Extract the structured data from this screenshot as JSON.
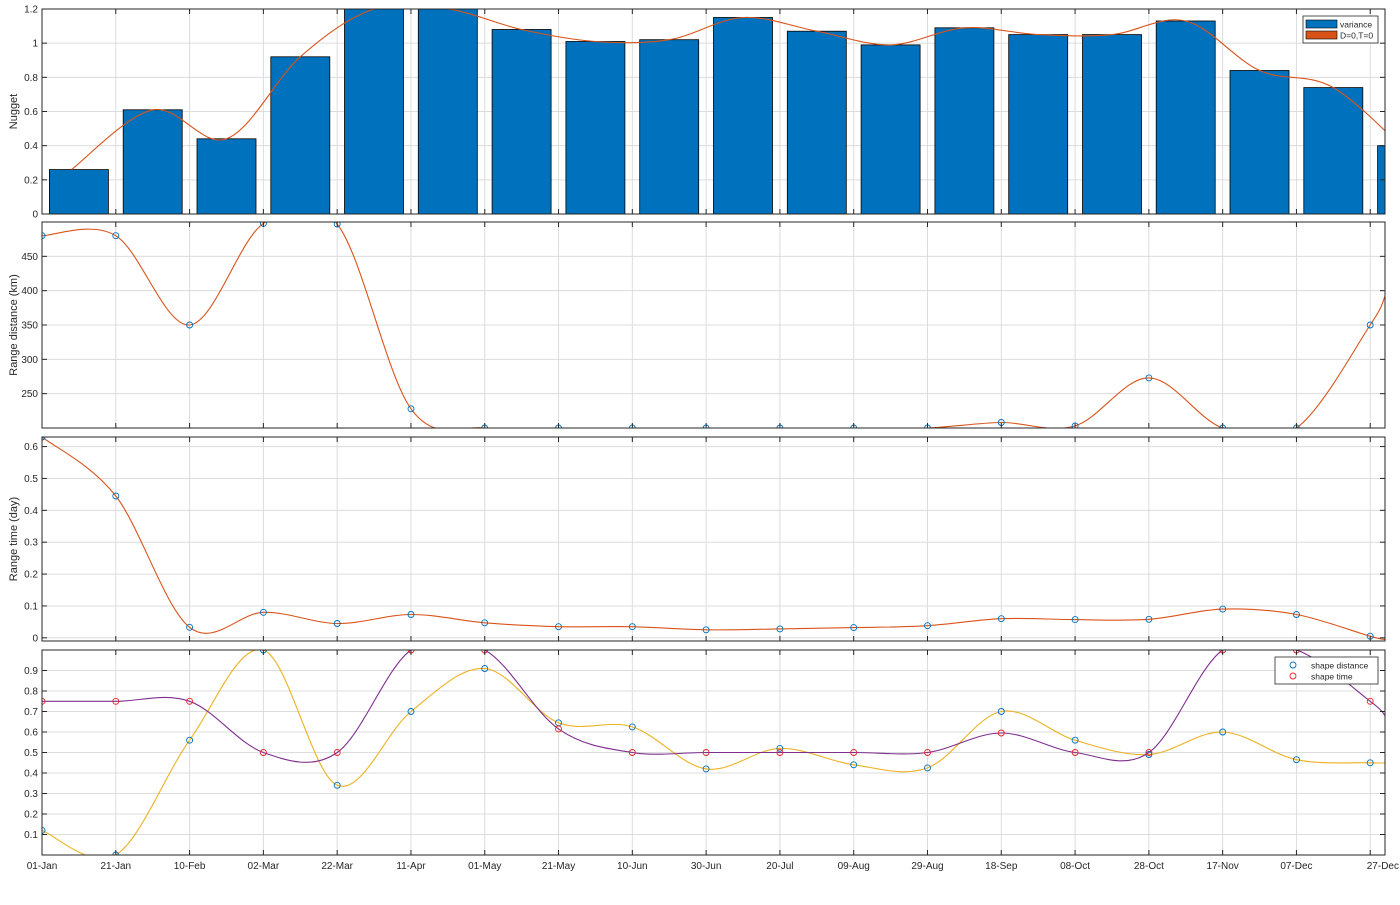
{
  "x_tick_labels": [
    "01-Jan",
    "21-Jan",
    "10-Feb",
    "02-Mar",
    "22-Mar",
    "11-Apr",
    "01-May",
    "21-May",
    "10-Jun",
    "30-Jun",
    "20-Jul",
    "09-Aug",
    "29-Aug",
    "18-Sep",
    "08-Oct",
    "28-Oct",
    "17-Nov",
    "07-Dec",
    "27-Dec"
  ],
  "colors": {
    "bar": "#0072BD",
    "orange": "#D95319",
    "yellow": "#EDB120",
    "purple": "#7E2F8E",
    "marker_blue": "#0072BD",
    "marker_red": "#E8262B",
    "grid": "#dcdcdc",
    "axis": "#262626"
  },
  "chart_data": [
    {
      "type": "bar",
      "ylabel": "Nugget",
      "ylim": [
        0,
        1.2
      ],
      "yticks": [
        0,
        0.2,
        0.4,
        0.6,
        0.8,
        1,
        1.2
      ],
      "ytick_labels": [
        "0",
        "0.2",
        "0.4",
        "0.6",
        "0.8",
        "1",
        "1.2"
      ],
      "grid": true,
      "legend": {
        "position": "top-right",
        "entries": [
          "variance",
          "D=0,T=0"
        ]
      },
      "series": [
        {
          "name": "variance",
          "kind": "bar",
          "color": "bar",
          "x": [
            0.5,
            1.5,
            2.5,
            3.5,
            4.5,
            5.5,
            6.5,
            7.5,
            8.5,
            9.5,
            10.5,
            11.5,
            12.5,
            13.5,
            14.5,
            15.5,
            16.5,
            17.5,
            18.5
          ],
          "values": [
            0.26,
            0.61,
            0.44,
            0.92,
            1.2,
            1.2,
            1.08,
            1.01,
            1.02,
            1.15,
            1.07,
            0.99,
            1.09,
            1.05,
            1.05,
            1.13,
            0.84,
            0.74,
            0.4
          ]
        },
        {
          "name": "D=0,T=0",
          "kind": "line",
          "color": "orange",
          "x": [
            0.4,
            1.5,
            2.5,
            3.5,
            4.5,
            5.5,
            6.5,
            7.5,
            8.5,
            9.5,
            10.5,
            11.5,
            12.5,
            13.5,
            14.5,
            15.5,
            16.5,
            17.5,
            18.6
          ],
          "values": [
            0.26,
            0.61,
            0.44,
            0.92,
            1.2,
            1.2,
            1.08,
            1.01,
            1.02,
            1.15,
            1.07,
            0.99,
            1.09,
            1.05,
            1.05,
            1.13,
            0.84,
            0.74,
            0.32
          ]
        }
      ]
    },
    {
      "type": "line",
      "ylabel": "Range distance (km)",
      "ylim": [
        200,
        500
      ],
      "yticks": [
        250,
        300,
        350,
        400,
        450
      ],
      "ytick_labels": [
        "250",
        "300",
        "350",
        "400",
        "450"
      ],
      "grid": true,
      "series": [
        {
          "kind": "line",
          "color": "orange",
          "marker": "marker_blue",
          "x": [
            0,
            1,
            2,
            3,
            4,
            5,
            6,
            7,
            8,
            9,
            10,
            11,
            12,
            13,
            14,
            15,
            16,
            17,
            18
          ],
          "values": [
            480,
            480,
            350,
            498,
            497,
            228,
            200,
            200,
            200,
            200,
            200,
            200,
            200,
            208,
            203,
            273,
            200,
            200,
            350
          ],
          "end_value": 392
        }
      ]
    },
    {
      "type": "line",
      "ylabel": "Range time (day)",
      "ylim": [
        -0.01,
        0.63
      ],
      "yticks": [
        0,
        0.1,
        0.2,
        0.3,
        0.4,
        0.5,
        0.6
      ],
      "ytick_labels": [
        "0",
        "0.1",
        "0.2",
        "0.3",
        "0.4",
        "0.5",
        "0.6"
      ],
      "grid": true,
      "series": [
        {
          "kind": "line",
          "color": "orange",
          "marker": "marker_blue",
          "x": [
            0,
            1,
            2,
            3,
            4,
            5,
            6,
            7,
            8,
            9,
            10,
            11,
            12,
            13,
            14,
            15,
            16,
            17,
            18
          ],
          "values": [
            0.63,
            0.445,
            0.033,
            0.08,
            0.045,
            0.073,
            0.047,
            0.035,
            0.035,
            0.025,
            0.028,
            0.032,
            0.038,
            0.06,
            0.057,
            0.058,
            0.09,
            0.073,
            0.005
          ],
          "end_value": -0.005
        }
      ]
    },
    {
      "type": "line",
      "ylabel": "",
      "ylim": [
        0,
        1.0
      ],
      "yticks": [
        0.1,
        0.2,
        0.3,
        0.4,
        0.5,
        0.6,
        0.7,
        0.8,
        0.9
      ],
      "ytick_labels": [
        "0.1",
        "0.2",
        "0.3",
        "0.4",
        "0.5",
        "0.6",
        "0.7",
        "0.8",
        "0.9"
      ],
      "grid": true,
      "legend": {
        "position": "top-right",
        "entries": [
          "shape distance",
          "shape time"
        ]
      },
      "series": [
        {
          "name": "shape distance",
          "kind": "line",
          "color": "yellow",
          "marker": "marker_blue",
          "x": [
            0,
            1,
            2,
            3,
            4,
            5,
            6,
            7,
            8,
            9,
            10,
            11,
            12,
            13,
            14,
            15,
            16,
            17,
            18
          ],
          "values": [
            0.12,
            0.0,
            0.56,
            1.0,
            0.34,
            0.7,
            0.91,
            0.645,
            0.625,
            0.42,
            0.52,
            0.44,
            0.425,
            0.7,
            0.56,
            0.49,
            0.6,
            0.465,
            0.45
          ],
          "end_value": 0.45
        },
        {
          "name": "shape time",
          "kind": "line",
          "color": "purple",
          "marker": "marker_red",
          "x": [
            0,
            1,
            2,
            3,
            4,
            5,
            6,
            7,
            8,
            9,
            10,
            11,
            12,
            13,
            14,
            15,
            16,
            17,
            18
          ],
          "values": [
            0.75,
            0.75,
            0.75,
            0.5,
            0.5,
            1.0,
            1.0,
            0.615,
            0.5,
            0.5,
            0.5,
            0.5,
            0.5,
            0.595,
            0.5,
            0.5,
            1.0,
            1.0,
            0.75
          ],
          "end_value": 0.68
        }
      ]
    }
  ]
}
